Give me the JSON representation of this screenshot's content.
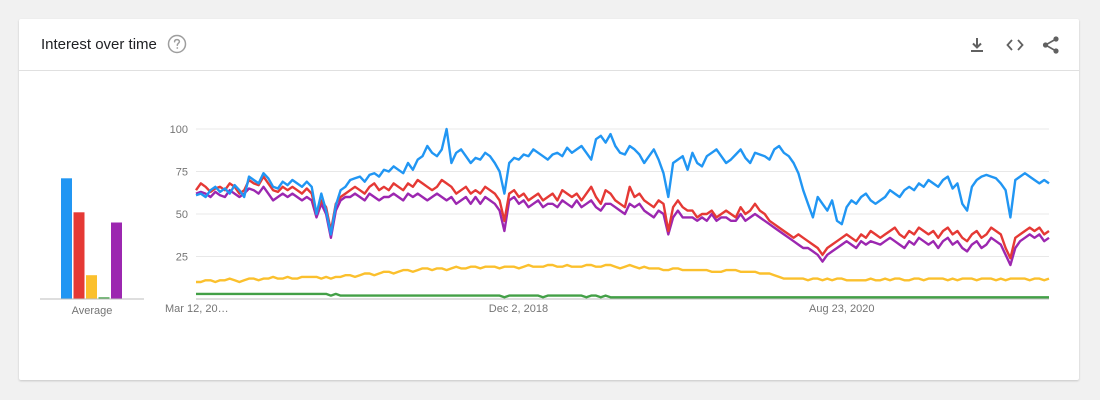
{
  "card": {
    "title": "Interest over time",
    "icons": {
      "help": "help-circle-icon",
      "download": "download-icon",
      "embed": "code-embed-icon",
      "share": "share-icon"
    }
  },
  "chart_data": {
    "type": "line",
    "title": "Interest over time",
    "ylim": [
      0,
      100
    ],
    "y_ticks": [
      25,
      50,
      75,
      100
    ],
    "x_tick_labels": [
      "Mar 12, 20…",
      "Dec 2, 2018",
      "Aug 23, 2020"
    ],
    "x_tick_positions": [
      0,
      0.378,
      0.757
    ],
    "grid": true,
    "average_label": "Average",
    "series": [
      {
        "color": "#2196f3",
        "average": 71,
        "values": [
          61,
          62,
          60,
          64,
          66,
          63,
          65,
          62,
          67,
          64,
          60,
          72,
          70,
          68,
          74,
          71,
          66,
          65,
          69,
          67,
          70,
          68,
          66,
          69,
          66,
          50,
          62,
          52,
          38,
          55,
          64,
          66,
          70,
          71,
          72,
          69,
          73,
          74,
          72,
          76,
          75,
          78,
          76,
          74,
          80,
          76,
          82,
          84,
          90,
          86,
          84,
          88,
          100,
          80,
          86,
          88,
          84,
          80,
          83,
          82,
          86,
          84,
          80,
          75,
          62,
          80,
          83,
          82,
          85,
          84,
          88,
          86,
          84,
          82,
          85,
          86,
          84,
          89,
          86,
          88,
          90,
          86,
          82,
          94,
          96,
          92,
          97,
          90,
          86,
          85,
          90,
          88,
          85,
          80,
          84,
          88,
          82,
          74,
          60,
          80,
          82,
          84,
          76,
          86,
          80,
          78,
          84,
          86,
          88,
          84,
          80,
          82,
          85,
          88,
          83,
          80,
          86,
          85,
          84,
          82,
          88,
          90,
          86,
          84,
          80,
          74,
          64,
          56,
          48,
          60,
          56,
          52,
          58,
          46,
          44,
          54,
          58,
          56,
          60,
          62,
          58,
          56,
          58,
          60,
          64,
          62,
          60,
          64,
          66,
          64,
          68,
          66,
          70,
          68,
          66,
          70,
          72,
          65,
          68,
          56,
          52,
          66,
          70,
          72,
          73,
          72,
          71,
          68,
          64,
          48,
          70,
          72,
          74,
          72,
          70,
          68,
          70,
          68
        ]
      },
      {
        "color": "#e53935",
        "average": 51,
        "values": [
          64,
          68,
          66,
          63,
          65,
          66,
          64,
          68,
          66,
          62,
          64,
          70,
          68,
          67,
          72,
          68,
          64,
          63,
          66,
          64,
          66,
          64,
          62,
          65,
          62,
          50,
          58,
          54,
          40,
          56,
          60,
          62,
          64,
          66,
          64,
          62,
          66,
          68,
          64,
          66,
          64,
          68,
          66,
          64,
          68,
          66,
          70,
          68,
          66,
          64,
          66,
          70,
          68,
          66,
          62,
          64,
          66,
          62,
          64,
          62,
          66,
          64,
          62,
          58,
          46,
          62,
          64,
          60,
          62,
          58,
          60,
          62,
          58,
          60,
          62,
          58,
          64,
          62,
          60,
          62,
          58,
          62,
          66,
          60,
          56,
          64,
          62,
          58,
          56,
          54,
          66,
          60,
          62,
          58,
          56,
          54,
          58,
          56,
          40,
          54,
          58,
          54,
          52,
          52,
          48,
          50,
          50,
          52,
          48,
          50,
          52,
          50,
          48,
          54,
          50,
          52,
          56,
          52,
          50,
          46,
          44,
          42,
          40,
          38,
          36,
          38,
          36,
          34,
          32,
          30,
          26,
          30,
          32,
          34,
          36,
          38,
          36,
          34,
          38,
          36,
          40,
          38,
          36,
          38,
          40,
          42,
          38,
          36,
          40,
          38,
          42,
          40,
          38,
          40,
          36,
          40,
          42,
          38,
          40,
          36,
          34,
          38,
          40,
          36,
          38,
          42,
          40,
          38,
          30,
          24,
          36,
          38,
          40,
          42,
          40,
          42,
          38,
          40
        ]
      },
      {
        "color": "#fbc02d",
        "average": 14,
        "values": [
          10,
          10,
          11,
          11,
          10,
          11,
          11,
          12,
          11,
          10,
          11,
          12,
          12,
          11,
          12,
          12,
          13,
          12,
          12,
          13,
          12,
          12,
          13,
          13,
          13,
          13,
          12,
          13,
          12,
          13,
          13,
          14,
          14,
          13,
          14,
          15,
          15,
          14,
          15,
          16,
          16,
          15,
          16,
          17,
          17,
          16,
          17,
          18,
          18,
          17,
          18,
          18,
          17,
          18,
          19,
          18,
          18,
          19,
          19,
          18,
          19,
          19,
          19,
          18,
          19,
          19,
          19,
          18,
          19,
          20,
          19,
          19,
          19,
          20,
          20,
          19,
          19,
          20,
          19,
          19,
          19,
          20,
          20,
          19,
          19,
          20,
          20,
          19,
          18,
          19,
          20,
          19,
          18,
          19,
          18,
          18,
          18,
          17,
          17,
          18,
          18,
          17,
          17,
          17,
          17,
          17,
          17,
          16,
          16,
          16,
          17,
          17,
          17,
          16,
          16,
          16,
          16,
          15,
          15,
          15,
          14,
          13,
          12,
          12,
          12,
          12,
          12,
          11,
          12,
          12,
          11,
          12,
          11,
          12,
          12,
          11,
          11,
          11,
          11,
          11,
          12,
          11,
          11,
          12,
          11,
          12,
          12,
          11,
          11,
          12,
          12,
          11,
          12,
          12,
          12,
          12,
          11,
          12,
          11,
          12,
          12,
          12,
          11,
          12,
          12,
          12,
          11,
          12,
          11,
          12,
          12,
          12,
          12,
          11,
          12,
          12,
          11,
          12
        ]
      },
      {
        "color": "#43a047",
        "average": 1,
        "values": [
          3,
          3,
          3,
          3,
          3,
          3,
          3,
          3,
          3,
          3,
          3,
          3,
          3,
          3,
          3,
          3,
          3,
          3,
          3,
          3,
          3,
          3,
          3,
          3,
          3,
          3,
          3,
          3,
          2,
          3,
          2,
          2,
          2,
          2,
          2,
          2,
          2,
          2,
          2,
          2,
          2,
          2,
          2,
          2,
          2,
          2,
          2,
          2,
          2,
          2,
          2,
          2,
          2,
          2,
          2,
          2,
          2,
          2,
          2,
          2,
          2,
          2,
          2,
          2,
          1,
          2,
          2,
          2,
          2,
          2,
          2,
          2,
          1,
          2,
          2,
          2,
          2,
          2,
          2,
          2,
          2,
          1,
          2,
          2,
          1,
          2,
          1,
          1,
          1,
          1,
          1,
          1,
          1,
          1,
          1,
          1,
          1,
          1,
          1,
          1,
          1,
          1,
          1,
          1,
          1,
          1,
          1,
          1,
          1,
          1,
          1,
          1,
          1,
          1,
          1,
          1,
          1,
          1,
          1,
          1,
          1,
          1,
          1,
          1,
          1,
          1,
          1,
          1,
          1,
          1,
          1,
          1,
          1,
          1,
          1,
          1,
          1,
          1,
          1,
          1,
          1,
          1,
          1,
          1,
          1,
          1,
          1,
          1,
          1,
          1,
          1,
          1,
          1,
          1,
          1,
          1,
          1,
          1,
          1,
          1,
          1,
          1,
          1,
          1,
          1,
          1,
          1,
          1,
          1,
          1,
          1,
          1,
          1,
          1,
          1,
          1,
          1,
          1
        ]
      },
      {
        "color": "#9c27b0",
        "average": 45,
        "values": [
          62,
          63,
          62,
          60,
          63,
          61,
          60,
          64,
          62,
          60,
          62,
          65,
          64,
          62,
          66,
          62,
          58,
          60,
          62,
          60,
          62,
          60,
          58,
          60,
          58,
          48,
          56,
          50,
          36,
          52,
          58,
          60,
          60,
          62,
          60,
          58,
          62,
          60,
          58,
          60,
          60,
          62,
          60,
          58,
          62,
          60,
          62,
          60,
          58,
          60,
          62,
          60,
          58,
          60,
          56,
          58,
          60,
          56,
          60,
          56,
          60,
          58,
          56,
          52,
          40,
          58,
          60,
          56,
          58,
          54,
          56,
          58,
          54,
          56,
          56,
          54,
          58,
          56,
          54,
          58,
          54,
          56,
          58,
          54,
          52,
          56,
          56,
          54,
          52,
          50,
          56,
          54,
          56,
          52,
          50,
          48,
          52,
          50,
          38,
          48,
          52,
          48,
          48,
          48,
          46,
          48,
          46,
          50,
          46,
          48,
          48,
          46,
          46,
          50,
          46,
          48,
          50,
          48,
          46,
          44,
          42,
          40,
          38,
          36,
          34,
          32,
          30,
          30,
          28,
          26,
          22,
          26,
          28,
          30,
          32,
          34,
          32,
          30,
          34,
          32,
          34,
          33,
          32,
          34,
          36,
          34,
          32,
          30,
          34,
          32,
          36,
          34,
          32,
          34,
          30,
          34,
          36,
          32,
          34,
          30,
          28,
          32,
          34,
          30,
          32,
          36,
          34,
          32,
          26,
          20,
          30,
          34,
          36,
          38,
          36,
          38,
          34,
          36
        ]
      }
    ]
  }
}
